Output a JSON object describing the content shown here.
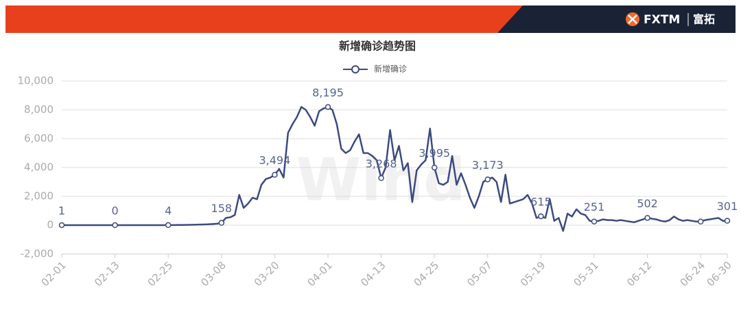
{
  "header": {
    "brand": "FXTM",
    "brand_cn": "富拓"
  },
  "chart_data": {
    "type": "line",
    "title": "新增确诊趋势图",
    "watermark": "Wind",
    "categories": [
      "02-01",
      null,
      null,
      null,
      null,
      null,
      null,
      null,
      null,
      null,
      null,
      null,
      "02-13",
      null,
      null,
      null,
      null,
      null,
      null,
      null,
      null,
      null,
      null,
      null,
      "02-25",
      null,
      null,
      null,
      null,
      null,
      null,
      null,
      null,
      null,
      null,
      null,
      "03-08",
      null,
      null,
      null,
      null,
      null,
      null,
      null,
      null,
      null,
      null,
      null,
      "03-20",
      null,
      null,
      null,
      null,
      null,
      null,
      null,
      null,
      null,
      null,
      null,
      "04-01",
      null,
      null,
      null,
      null,
      null,
      null,
      null,
      null,
      null,
      null,
      null,
      "04-13",
      null,
      null,
      null,
      null,
      null,
      null,
      null,
      null,
      null,
      null,
      null,
      "04-25",
      null,
      null,
      null,
      null,
      null,
      null,
      null,
      null,
      null,
      null,
      null,
      "05-07",
      null,
      null,
      null,
      null,
      null,
      null,
      null,
      null,
      null,
      null,
      null,
      "05-19",
      null,
      null,
      null,
      null,
      null,
      null,
      null,
      null,
      null,
      null,
      null,
      "05-31",
      null,
      null,
      null,
      null,
      null,
      null,
      null,
      null,
      null,
      null,
      null,
      "06-12",
      null,
      null,
      null,
      null,
      null,
      null,
      null,
      null,
      null,
      null,
      null,
      "06-24",
      null,
      null,
      null,
      null,
      null,
      "06-30"
    ],
    "series": [
      {
        "name": "新增确诊",
        "color": "#3b4a80",
        "values": [
          1,
          0,
          0,
          0,
          0,
          0,
          0,
          0,
          0,
          0,
          0,
          0,
          0,
          0,
          0,
          0,
          0,
          0,
          0,
          0,
          0,
          0,
          0,
          0,
          4,
          5,
          10,
          15,
          20,
          25,
          30,
          40,
          50,
          60,
          80,
          100,
          158,
          500,
          550,
          700,
          2100,
          1200,
          1500,
          1900,
          1800,
          2800,
          3200,
          3300,
          3494,
          3900,
          3300,
          6400,
          7000,
          7500,
          8200,
          8000,
          7500,
          6900,
          7900,
          8100,
          8195,
          8000,
          7000,
          5300,
          5000,
          5200,
          5800,
          6300,
          5000,
          5000,
          4800,
          4500,
          3268,
          4000,
          6600,
          4500,
          5500,
          3800,
          4300,
          1600,
          3800,
          4200,
          4500,
          6700,
          3995,
          2900,
          2800,
          3000,
          4800,
          2800,
          3600,
          2800,
          1900,
          1200,
          2000,
          3000,
          3173,
          3300,
          3000,
          1600,
          3500,
          1500,
          1600,
          1700,
          1800,
          2100,
          1500,
          500,
          615,
          500,
          1800,
          300,
          500,
          -400,
          800,
          600,
          1100,
          800,
          700,
          300,
          251,
          300,
          400,
          350,
          350,
          300,
          350,
          300,
          250,
          200,
          300,
          400,
          502,
          450,
          400,
          300,
          250,
          350,
          600,
          400,
          300,
          350,
          300,
          250,
          250,
          350,
          400,
          450,
          500,
          300,
          301
        ],
        "value_labels": [
          "1",
          null,
          null,
          null,
          null,
          null,
          null,
          null,
          null,
          null,
          null,
          null,
          "0",
          null,
          null,
          null,
          null,
          null,
          null,
          null,
          null,
          null,
          null,
          null,
          "4",
          null,
          null,
          null,
          null,
          null,
          null,
          null,
          null,
          null,
          null,
          null,
          "158",
          null,
          null,
          null,
          null,
          null,
          null,
          null,
          null,
          null,
          null,
          null,
          "3,494",
          null,
          null,
          null,
          null,
          null,
          null,
          null,
          null,
          null,
          null,
          null,
          "8,195",
          null,
          null,
          null,
          null,
          null,
          null,
          null,
          null,
          null,
          null,
          null,
          "3,268",
          null,
          null,
          null,
          null,
          null,
          null,
          null,
          null,
          null,
          null,
          null,
          "3,995",
          null,
          null,
          null,
          null,
          null,
          null,
          null,
          null,
          null,
          null,
          null,
          "3,173",
          null,
          null,
          null,
          null,
          null,
          null,
          null,
          null,
          null,
          null,
          null,
          "615",
          null,
          null,
          null,
          null,
          null,
          null,
          null,
          null,
          null,
          null,
          null,
          "251",
          null,
          null,
          null,
          null,
          null,
          null,
          null,
          null,
          null,
          null,
          null,
          "502",
          null,
          null,
          null,
          null,
          null,
          null,
          null,
          null,
          null,
          null,
          null,
          null,
          null,
          null,
          null,
          null,
          null,
          "301"
        ]
      }
    ],
    "ylim": [
      -2000,
      10000
    ],
    "yticks": [
      {
        "value": -2000,
        "label": "-2,000"
      },
      0,
      {
        "value": 2000,
        "label": "2,000"
      },
      {
        "value": 4000,
        "label": "4,000"
      },
      {
        "value": 6000,
        "label": "6,000"
      },
      {
        "value": 8000,
        "label": "8,000"
      },
      {
        "value": 10000,
        "label": "10,000"
      }
    ],
    "grid": true
  }
}
